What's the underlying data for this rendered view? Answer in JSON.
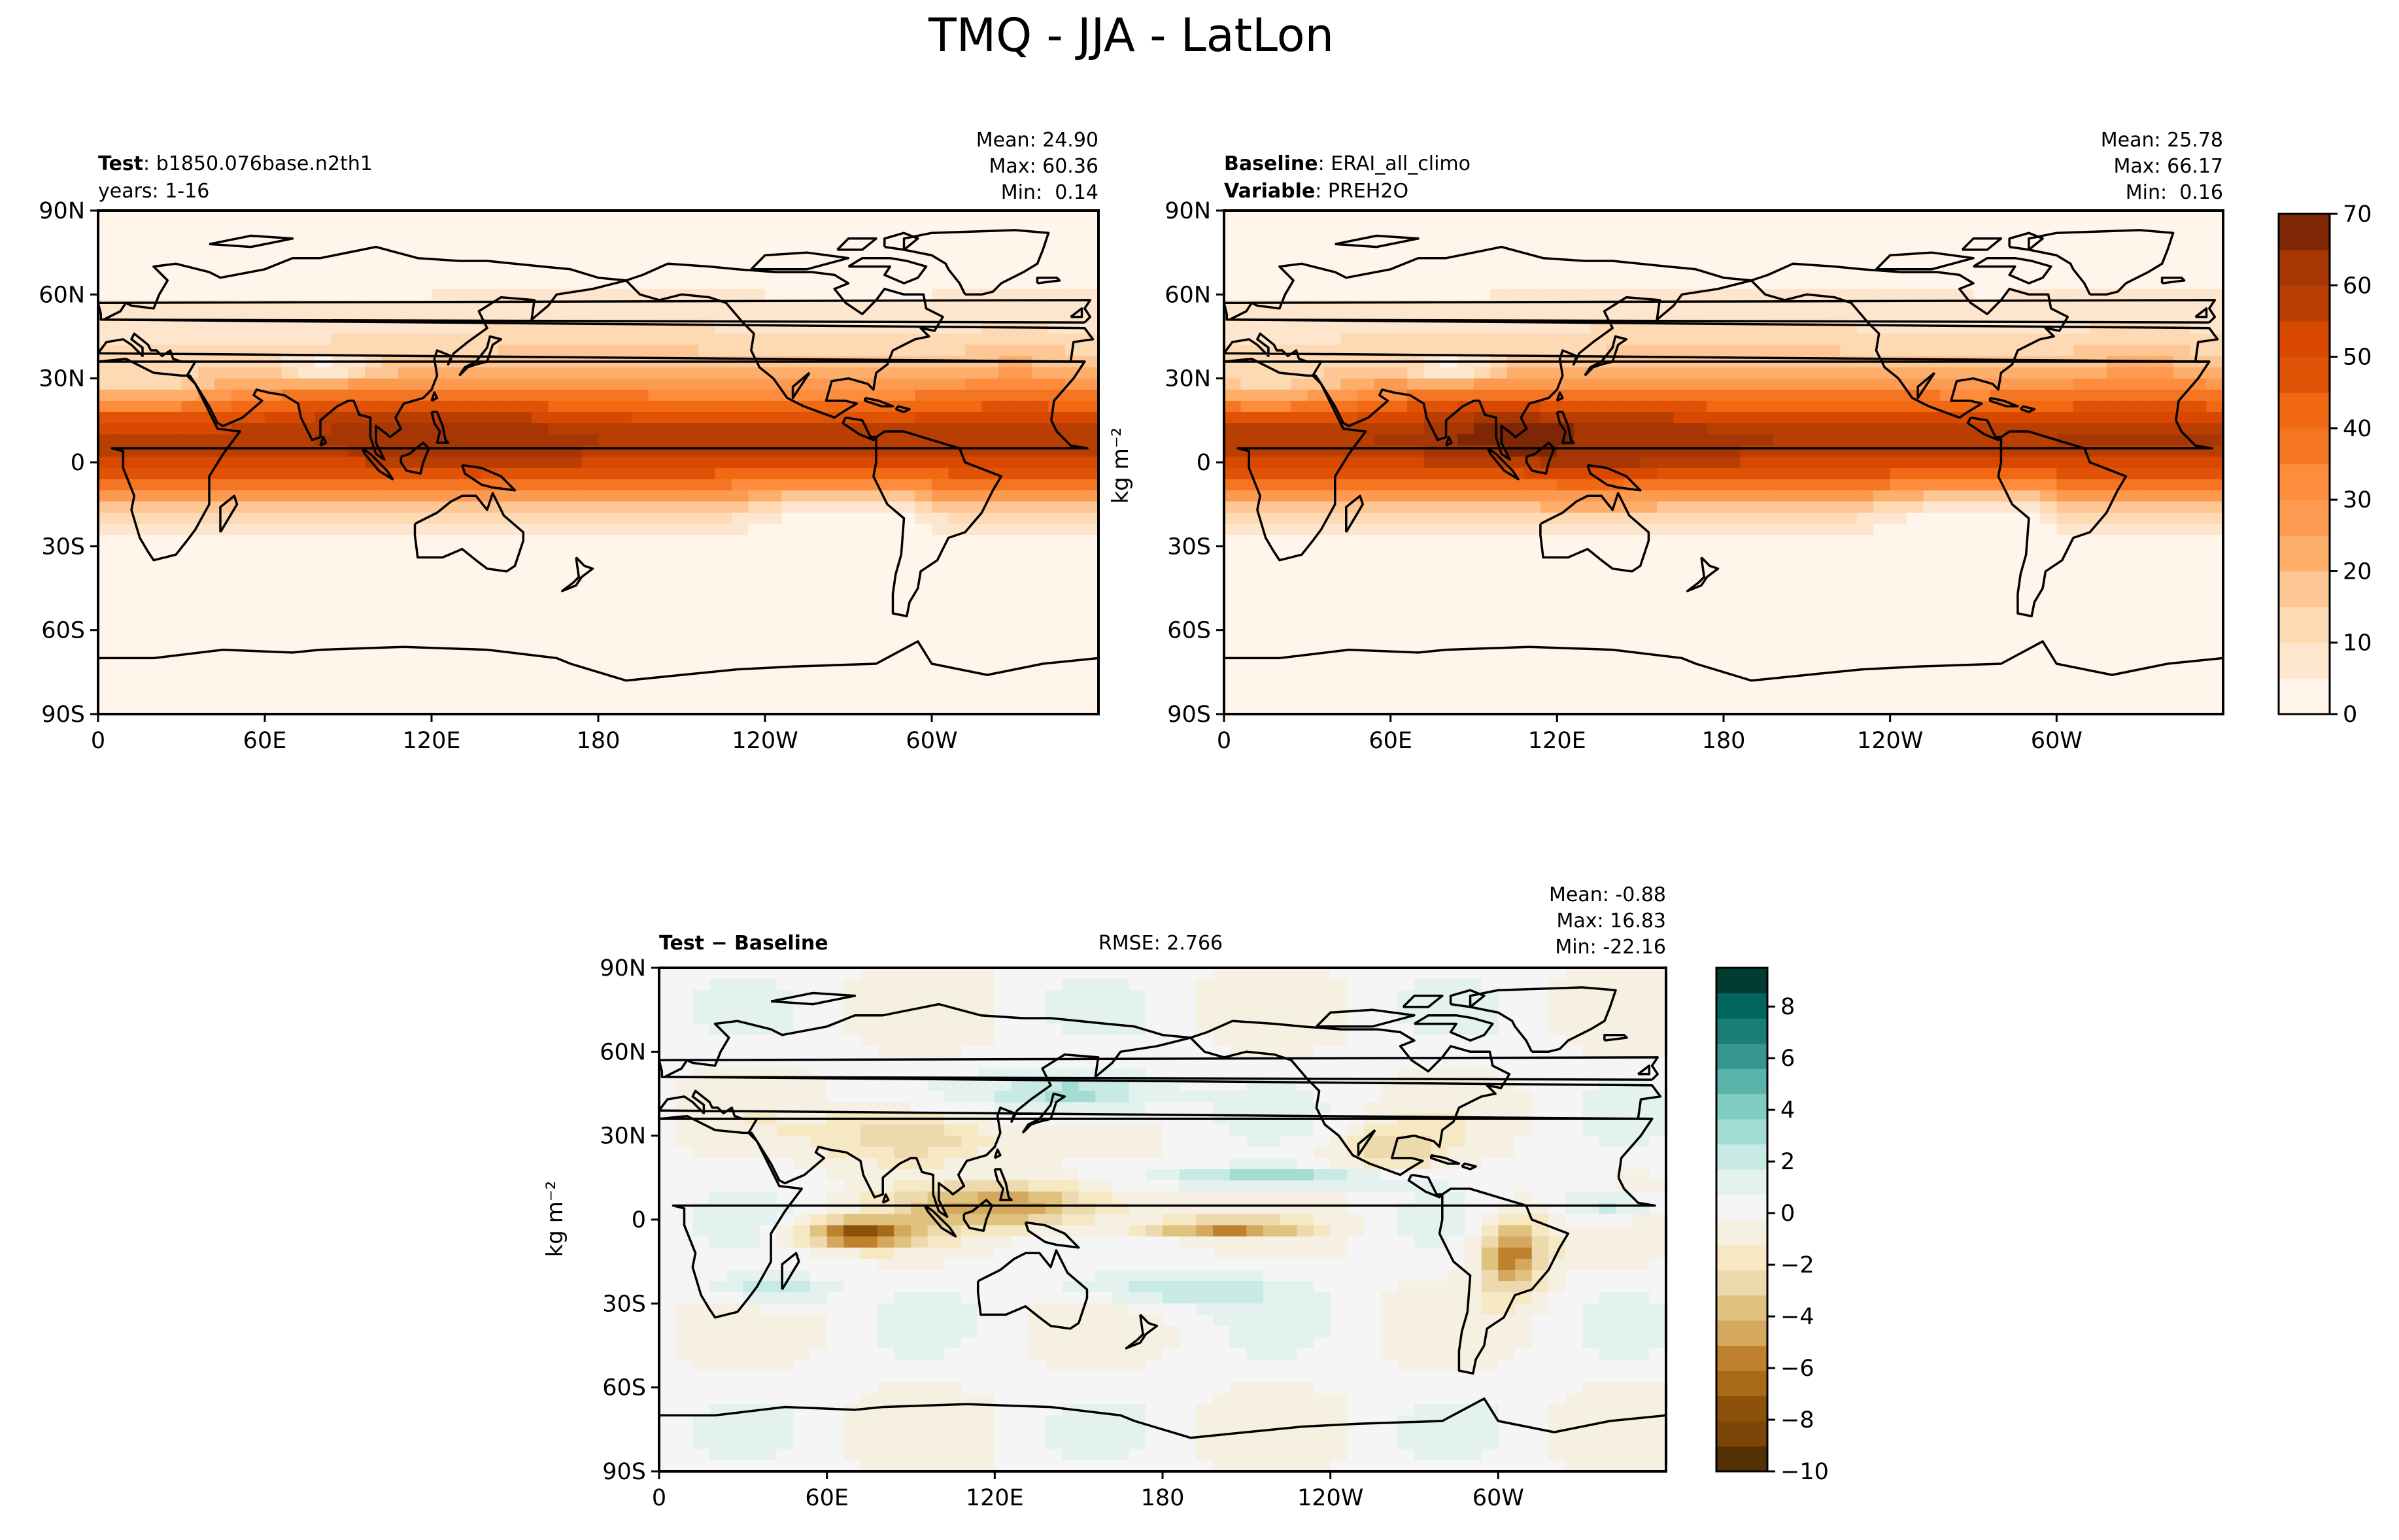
{
  "figure": {
    "title": "TMQ - JJA - LatLon"
  },
  "chart_data": [
    {
      "type": "heatmap",
      "panel": "test",
      "title_left": [
        {
          "bold": "Test",
          "text": "b1850.076base.n2th1"
        },
        {
          "bold": "",
          "text": "years: 1-16"
        }
      ],
      "stats": [
        "Mean: 24.90",
        "Max: 60.36",
        "Min:  0.14"
      ],
      "x_ticks": [
        "0",
        "60E",
        "120E",
        "180",
        "120W",
        "60W"
      ],
      "x_tick_values": [
        0,
        60,
        120,
        180,
        240,
        300
      ],
      "y_ticks": [
        "90N",
        "60N",
        "30N",
        "0",
        "30S",
        "60S",
        "90S"
      ],
      "y_tick_values": [
        90,
        60,
        30,
        0,
        -30,
        -60,
        -90
      ],
      "xlim": [
        0,
        360
      ],
      "ylim": [
        -90,
        90
      ],
      "ylabel": "",
      "stats_mean": 24.9,
      "stats_max": 60.36,
      "stats_min": 0.14
    },
    {
      "type": "heatmap",
      "panel": "baseline",
      "title_left": [
        {
          "bold": "Baseline",
          "text": "ERAI_all_climo"
        },
        {
          "bold": "Variable",
          "text": "PREH2O"
        }
      ],
      "stats": [
        "Mean: 25.78",
        "Max: 66.17",
        "Min:  0.16"
      ],
      "x_ticks": [
        "0",
        "60E",
        "120E",
        "180",
        "120W",
        "60W"
      ],
      "x_tick_values": [
        0,
        60,
        120,
        180,
        240,
        300
      ],
      "y_ticks": [
        "90N",
        "60N",
        "30N",
        "0",
        "30S",
        "60S",
        "90S"
      ],
      "y_tick_values": [
        90,
        60,
        30,
        0,
        -30,
        -60,
        -90
      ],
      "xlim": [
        0,
        360
      ],
      "ylim": [
        -90,
        90
      ],
      "ylabel": "kg m⁻²",
      "stats_mean": 25.78,
      "stats_max": 66.17,
      "stats_min": 0.16,
      "colorbar": {
        "ticks": [
          "0",
          "10",
          "20",
          "30",
          "40",
          "50",
          "60",
          "70"
        ],
        "tick_values": [
          0,
          10,
          20,
          30,
          40,
          50,
          60,
          70
        ],
        "range": [
          0,
          70
        ],
        "levels": 14,
        "colors": [
          "#fff5eb",
          "#fee6ce",
          "#fdd9b4",
          "#fdc795",
          "#fdae6b",
          "#fd9a52",
          "#fd8d3c",
          "#f57622",
          "#f16913",
          "#e05206",
          "#d94801",
          "#b93e02",
          "#a63603",
          "#7f2704"
        ]
      }
    },
    {
      "type": "heatmap",
      "panel": "difference",
      "title_left": [
        {
          "bold": "Test − Baseline",
          "text": ""
        }
      ],
      "title_center": "RMSE: 2.766",
      "stats": [
        "Mean: -0.88",
        "Max: 16.83",
        "Min: -22.16"
      ],
      "x_ticks": [
        "0",
        "60E",
        "120E",
        "180",
        "120W",
        "60W"
      ],
      "x_tick_values": [
        0,
        60,
        120,
        180,
        240,
        300
      ],
      "y_ticks": [
        "90N",
        "60N",
        "30N",
        "0",
        "30S",
        "60S",
        "90S"
      ],
      "y_tick_values": [
        90,
        60,
        30,
        0,
        -30,
        -60,
        -90
      ],
      "xlim": [
        0,
        360
      ],
      "ylim": [
        -90,
        90
      ],
      "ylabel": "kg m⁻²",
      "stats_mean": -0.88,
      "stats_max": 16.83,
      "stats_min": -22.16,
      "rmse": 2.766,
      "colorbar": {
        "ticks": [
          "−10",
          "−8",
          "−6",
          "−4",
          "−2",
          "0",
          "2",
          "4",
          "6",
          "8"
        ],
        "tick_values": [
          -10,
          -8,
          -6,
          -4,
          -2,
          0,
          2,
          4,
          6,
          8
        ],
        "range": [
          -10,
          9.5
        ],
        "colors": [
          "#543005",
          "#7a4709",
          "#8c510a",
          "#a96a18",
          "#bf812d",
          "#d4a85e",
          "#dfc27d",
          "#ecd9ae",
          "#f6e8c3",
          "#f5f0e1",
          "#f5f5f5",
          "#e3f2ef",
          "#c7eae5",
          "#a3dcd2",
          "#80cdc1",
          "#5ab4a9",
          "#35978f",
          "#1a7d76",
          "#01665e",
          "#003c30"
        ]
      }
    }
  ],
  "icons": {
    "coastline": "coastline-outline"
  }
}
